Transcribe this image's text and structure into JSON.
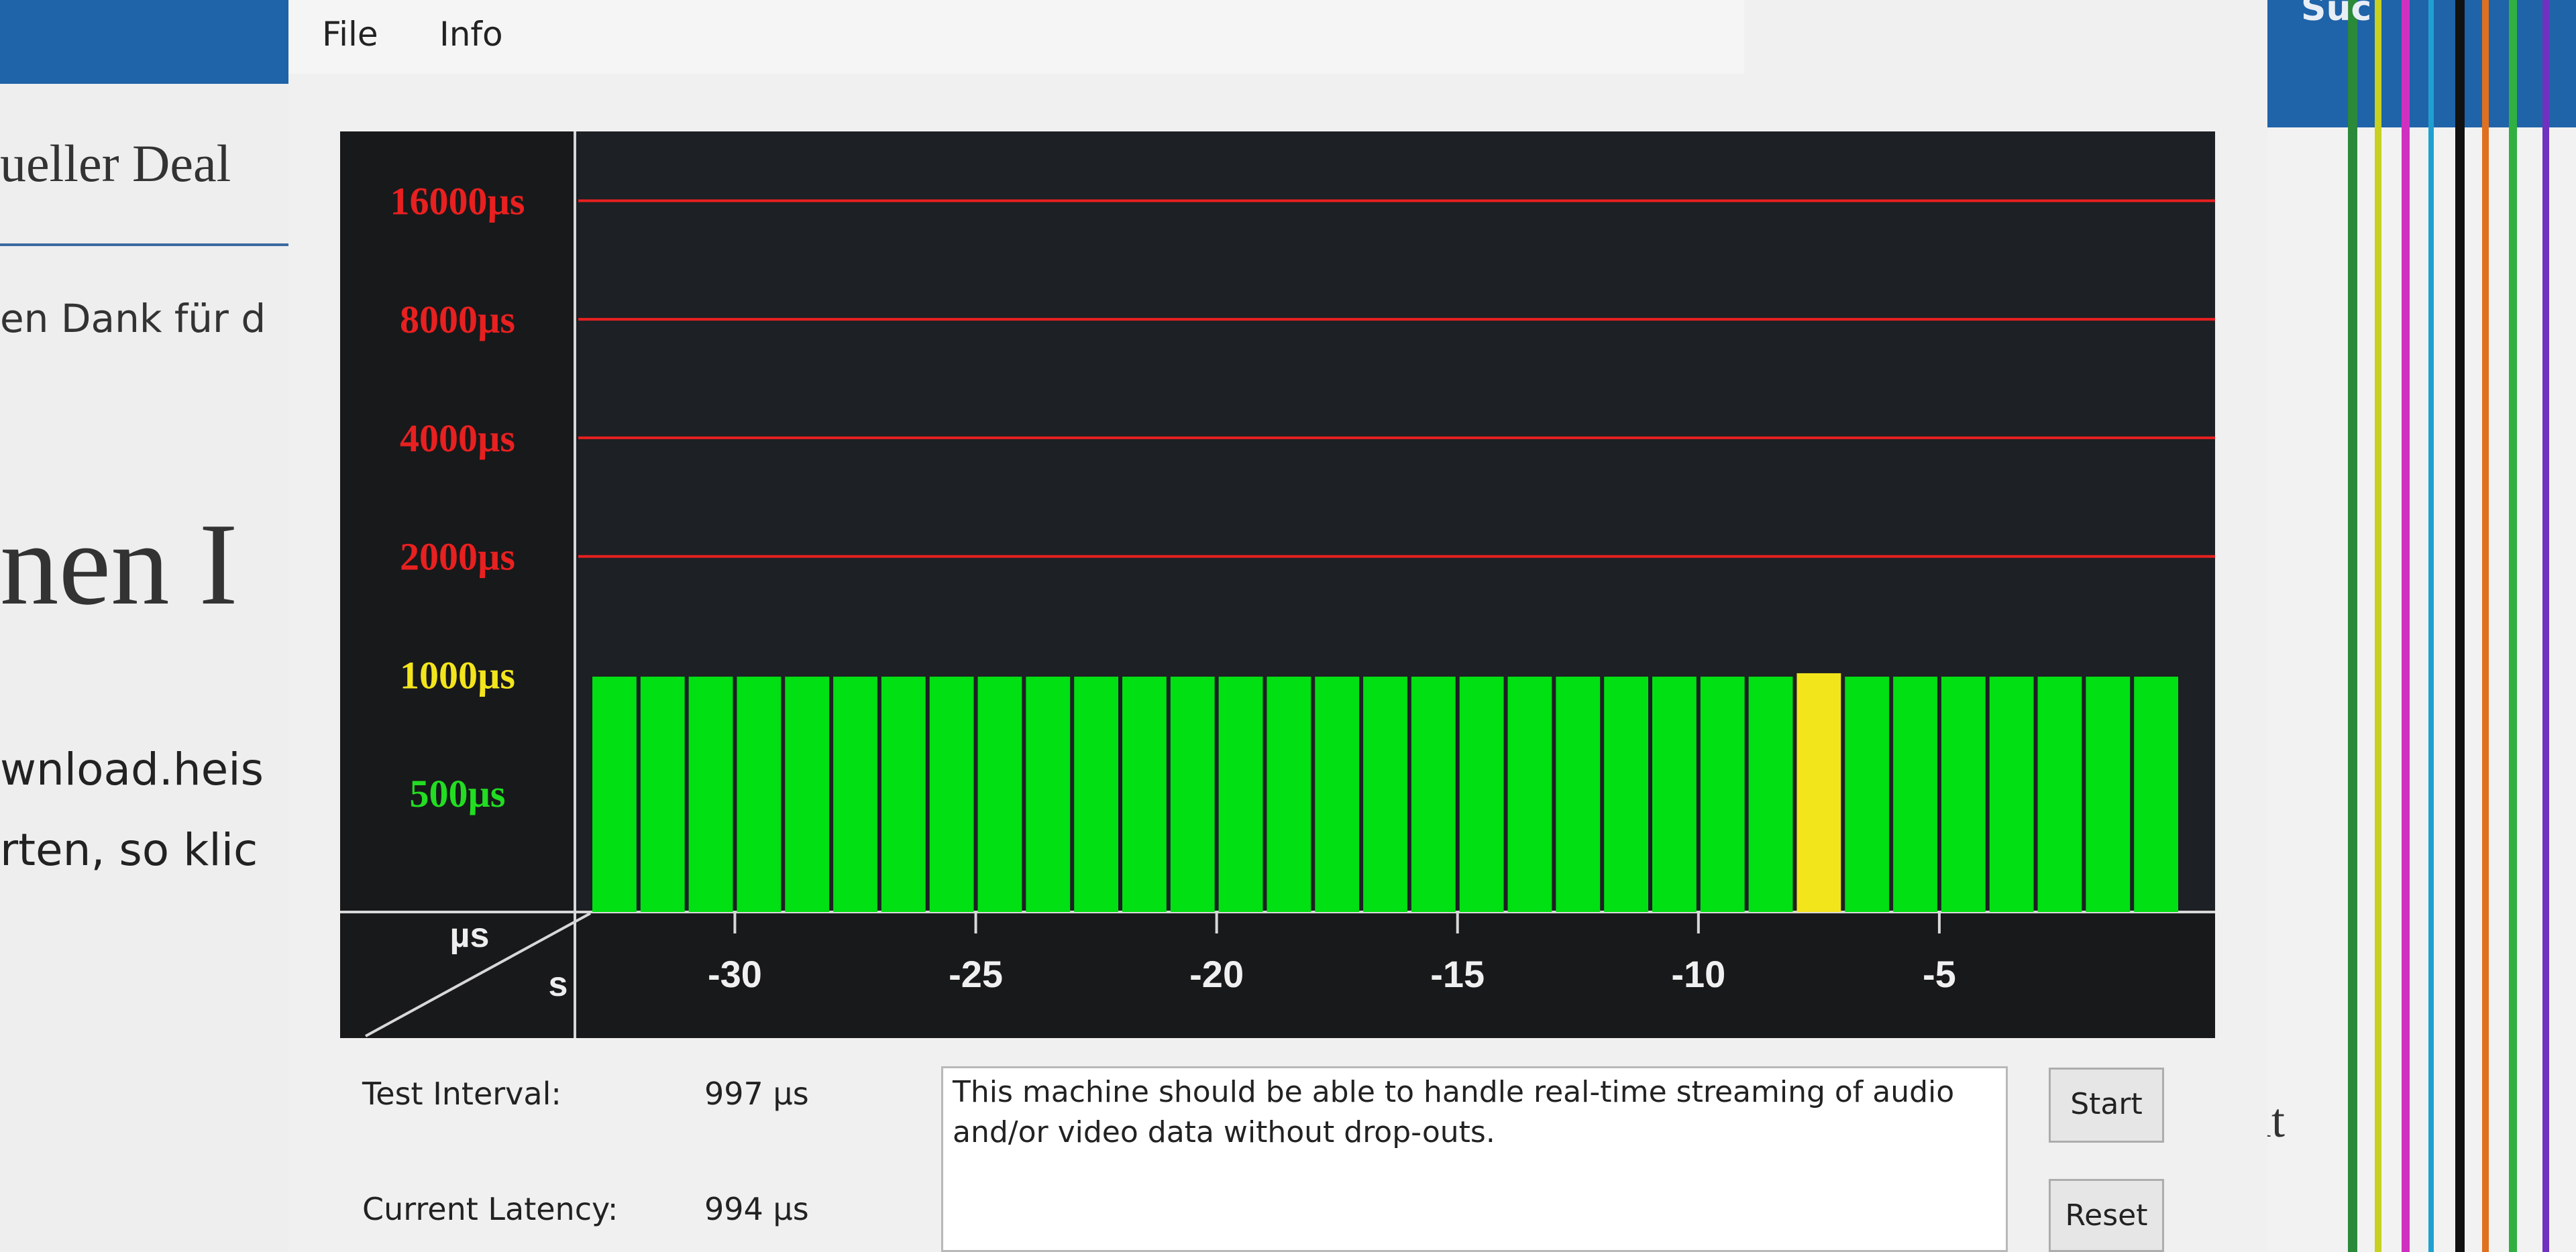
{
  "menu": [
    "File",
    "Info"
  ],
  "background": {
    "texts": [
      "ueller Deal",
      "en Dank für d",
      "nen I",
      "wnload.heis",
      "rten, so klic",
      "nit",
      "Suc"
    ]
  },
  "chart_data": {
    "type": "bar",
    "x": [
      -32.5,
      -31.5,
      -30.5,
      -29.5,
      -28.5,
      -27.5,
      -26.5,
      -25.5,
      -24.5,
      -23.5,
      -22.5,
      -21.5,
      -20.5,
      -19.5,
      -18.5,
      -17.5,
      -16.5,
      -15.5,
      -14.5,
      -13.5,
      -12.5,
      -11.5,
      -10.5,
      -9.5,
      -8.5,
      -7.5,
      -6.5,
      -5.5,
      -4.5,
      -3.5,
      -2.5,
      -1.5,
      -0.5
    ],
    "values": [
      990,
      990,
      990,
      990,
      990,
      990,
      990,
      990,
      990,
      990,
      990,
      990,
      990,
      990,
      990,
      990,
      990,
      990,
      990,
      990,
      990,
      990,
      990,
      990,
      990,
      1010,
      990,
      990,
      990,
      990,
      990,
      990,
      990
    ],
    "colors": [
      "#00e012",
      "#00e012",
      "#00e012",
      "#00e012",
      "#00e012",
      "#00e012",
      "#00e012",
      "#00e012",
      "#00e012",
      "#00e012",
      "#00e012",
      "#00e012",
      "#00e012",
      "#00e012",
      "#00e012",
      "#00e012",
      "#00e012",
      "#00e012",
      "#00e012",
      "#00e012",
      "#00e012",
      "#00e012",
      "#00e012",
      "#00e012",
      "#00e012",
      "#f2e51c",
      "#00e012",
      "#00e012",
      "#00e012",
      "#00e012",
      "#00e012",
      "#00e012",
      "#00e012"
    ],
    "log_scale": true,
    "ylim": [
      250,
      24000
    ],
    "yticks": [
      {
        "value": 500,
        "label": "500µs"
      },
      {
        "value": 1000,
        "label": "1000µs"
      },
      {
        "value": 2000,
        "label": "2000µs"
      },
      {
        "value": 4000,
        "label": "4000µs"
      },
      {
        "value": 8000,
        "label": "8000µs"
      },
      {
        "value": 16000,
        "label": "16000µs"
      }
    ],
    "ytick_colors": [
      "#22dd22",
      "#f2e51c",
      "#e82020",
      "#e82020",
      "#e82020",
      "#e82020"
    ],
    "grid_color": "#e82020",
    "xlim": [
      -33,
      0
    ],
    "xticks": [
      -30,
      -25,
      -20,
      -15,
      -10,
      -5
    ],
    "y_unit_label": "µs",
    "x_unit_label": "s"
  },
  "status": {
    "test_interval_label": "Test Interval:",
    "test_interval": "997 µs",
    "current_latency_label": "Current Latency:",
    "current_latency": "994 µs",
    "message": "This machine should be able to handle real-time streaming of audio and/or video data without drop-outs.",
    "buttons": [
      "Start",
      "Reset"
    ]
  }
}
